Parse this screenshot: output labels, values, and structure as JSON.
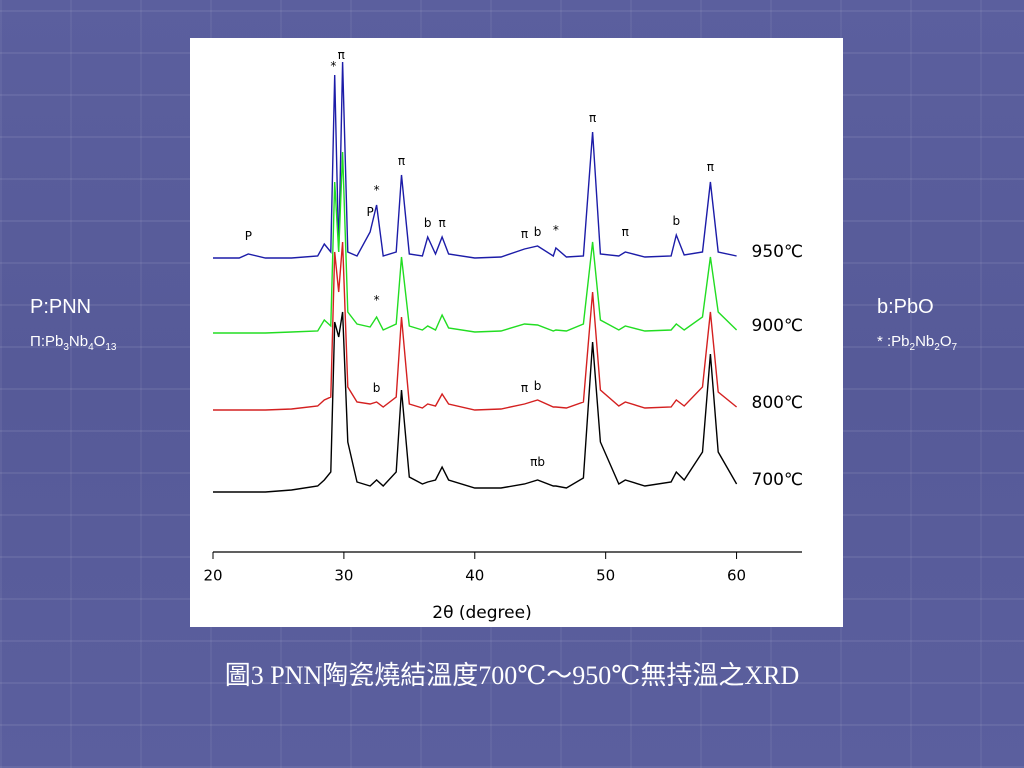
{
  "slide": {
    "left_legend": [
      "P:PNN",
      "Π:Pb3Nb4O13"
    ],
    "right_legend": [
      "b:PbO",
      "* :Pb2Nb2O7"
    ],
    "caption": "圖3 PNN陶瓷燒結溫度700℃～950℃無持溫之XRD"
  },
  "chart_data": {
    "type": "line",
    "x_label": "2θ (degree)",
    "xlim": [
      20,
      65
    ],
    "xticks": [
      20,
      30,
      40,
      50,
      60
    ],
    "ylim": [
      0,
      500
    ],
    "x": [
      20,
      22,
      22.7,
      24,
      26,
      28,
      28.5,
      29,
      29.3,
      29.6,
      29.9,
      30.3,
      31,
      32,
      32.5,
      33,
      34,
      34.4,
      35,
      36,
      36.4,
      37,
      37.5,
      38,
      40,
      42,
      43.8,
      44.8,
      46,
      46.2,
      47,
      48.3,
      49,
      49.6,
      51,
      51.5,
      53,
      55,
      55.4,
      56,
      57.4,
      58,
      58.6,
      60
    ],
    "series": [
      {
        "name": "950℃",
        "color": "#1c1ca8",
        "values": [
          294,
          294,
          298,
          294,
          294,
          296,
          308,
          300,
          477,
          300,
          490,
          300,
          296,
          320,
          347,
          296,
          300,
          377,
          298,
          296,
          315,
          298,
          315,
          298,
          294,
          295,
          303,
          306,
          296,
          304,
          295,
          296,
          420,
          298,
          296,
          300,
          295,
          296,
          317,
          297,
          300,
          370,
          300,
          296
        ]
      },
      {
        "name": "900℃",
        "color": "#22dd22",
        "values": [
          219,
          219,
          219,
          219,
          220,
          221,
          232,
          226,
          370,
          300,
          400,
          240,
          228,
          225,
          235,
          222,
          228,
          295,
          226,
          222,
          226,
          222,
          237,
          224,
          220,
          221,
          228,
          227,
          221,
          222,
          221,
          228,
          310,
          232,
          222,
          226,
          221,
          222,
          228,
          222,
          235,
          295,
          240,
          222
        ]
      },
      {
        "name": "800℃",
        "color": "#d42020",
        "values": [
          142,
          142,
          142,
          142,
          143,
          146,
          152,
          155,
          300,
          260,
          310,
          165,
          150,
          148,
          150,
          145,
          155,
          235,
          148,
          144,
          148,
          146,
          158,
          148,
          142,
          143,
          148,
          152,
          145,
          145,
          144,
          150,
          260,
          162,
          146,
          150,
          144,
          145,
          152,
          146,
          165,
          240,
          160,
          145
        ]
      },
      {
        "name": "700℃",
        "color": "#000000",
        "values": [
          60,
          60,
          60,
          60,
          62,
          66,
          72,
          80,
          230,
          215,
          240,
          110,
          70,
          66,
          72,
          66,
          80,
          162,
          75,
          68,
          70,
          72,
          85,
          72,
          64,
          64,
          68,
          72,
          66,
          66,
          64,
          74,
          210,
          110,
          68,
          72,
          66,
          70,
          80,
          72,
          100,
          198,
          100,
          68
        ]
      }
    ],
    "annotations": [
      {
        "text": "P",
        "x": 22.7,
        "y": 312
      },
      {
        "text": "*",
        "x": 29.2,
        "y": 482
      },
      {
        "text": "π",
        "x": 29.8,
        "y": 493
      },
      {
        "text": "P",
        "x": 32,
        "y": 336
      },
      {
        "text": "*",
        "x": 32.5,
        "y": 358
      },
      {
        "text": "π",
        "x": 34.4,
        "y": 387
      },
      {
        "text": "b",
        "x": 36.4,
        "y": 325
      },
      {
        "text": "π",
        "x": 37.5,
        "y": 325
      },
      {
        "text": "π",
        "x": 43.8,
        "y": 314
      },
      {
        "text": "b",
        "x": 44.8,
        "y": 316
      },
      {
        "text": "*",
        "x": 46.2,
        "y": 318
      },
      {
        "text": "π",
        "x": 49,
        "y": 430
      },
      {
        "text": "π",
        "x": 51.5,
        "y": 316
      },
      {
        "text": "b",
        "x": 55.4,
        "y": 327
      },
      {
        "text": "π",
        "x": 58,
        "y": 381
      },
      {
        "text": "*",
        "x": 32.5,
        "y": 248
      },
      {
        "text": "b",
        "x": 32.5,
        "y": 160
      },
      {
        "text": "π",
        "x": 43.8,
        "y": 160
      },
      {
        "text": "b",
        "x": 44.8,
        "y": 162
      },
      {
        "text": "πb",
        "x": 44.8,
        "y": 86
      }
    ]
  }
}
